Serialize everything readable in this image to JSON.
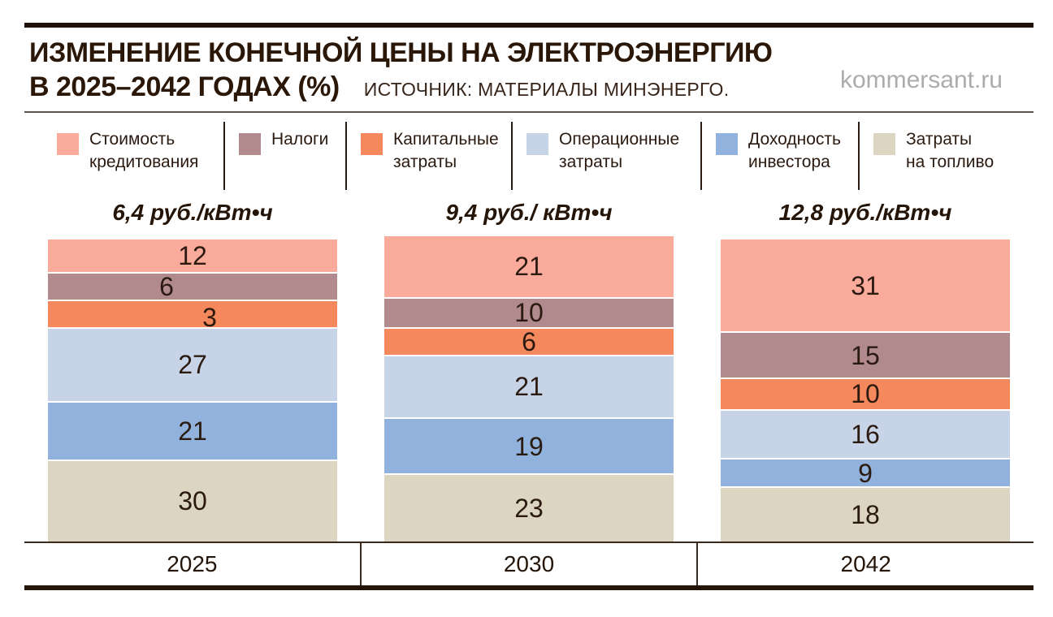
{
  "header": {
    "title_line1": "ИЗМЕНЕНИЕ КОНЕЧНОЙ ЦЕНЫ НА ЭЛЕКТРОЭНЕРГИЮ",
    "title_line2": "В 2025–2042 ГОДАХ (%)",
    "source": "ИСТОЧНИК: МАТЕРИАЛЫ МИНЭНЕРГО.",
    "watermark": "kommersant.ru"
  },
  "legend": {
    "items": [
      {
        "lines": [
          "Стоимость",
          "кредитования"
        ],
        "color": "#fbab9c"
      },
      {
        "lines": [
          "Налоги"
        ],
        "color": "#b18a8d"
      },
      {
        "lines": [
          "Капитальные",
          "затраты"
        ],
        "color": "#f5885c"
      },
      {
        "lines": [
          "Операционные",
          "затраты"
        ],
        "color": "#c7d4e8"
      },
      {
        "lines": [
          "Доходность",
          "инвестора"
        ],
        "color": "#90b2dc"
      },
      {
        "lines": [
          "Затраты",
          "на топливо"
        ],
        "color": "#dcd5c2"
      }
    ]
  },
  "chart_data": {
    "type": "bar",
    "stacked": true,
    "unit": "%",
    "title": "ИЗМЕНЕНИЕ КОНЕЧНОЙ ЦЕНЫ НА ЭЛЕКТРОЭНЕРГИЮ В 2025–2042 ГОДАХ (%)",
    "source": "ИСТОЧНИК: МАТЕРИАЛЫ МИНЭНЕРГО.",
    "categories": [
      "2025",
      "2030",
      "2042"
    ],
    "category_price_labels": [
      "6,4 руб./кВт•ч",
      "9,4 руб./ кВт•ч",
      "12,8 руб./кВт•ч"
    ],
    "series": [
      {
        "name": "Стоимость кредитования",
        "color": "#fbab9c",
        "values": [
          12,
          21,
          31
        ]
      },
      {
        "name": "Налоги",
        "color": "#b18a8d",
        "values": [
          6,
          10,
          15
        ]
      },
      {
        "name": "Капитальные затраты",
        "color": "#f5885c",
        "values": [
          3,
          6,
          10
        ]
      },
      {
        "name": "Операционные затраты",
        "color": "#c7d4e8",
        "values": [
          27,
          21,
          16
        ]
      },
      {
        "name": "Доходность инвестора",
        "color": "#90b2dc",
        "values": [
          21,
          19,
          9
        ]
      },
      {
        "name": "Затраты на топливо",
        "color": "#dcd5c2",
        "values": [
          30,
          23,
          18
        ]
      }
    ],
    "legend_position": "top",
    "grid": false,
    "axis": {
      "x_labels_boxed": true
    }
  },
  "style_colors": {
    "masthead_bar": "#20120a",
    "header_rule": "#5c5649",
    "axis_line": "#3a281b",
    "bottom_rule": "#241508",
    "value_label": "#2b1a10",
    "watermark": "#acacac",
    "segment_gap": "#ffffff"
  }
}
